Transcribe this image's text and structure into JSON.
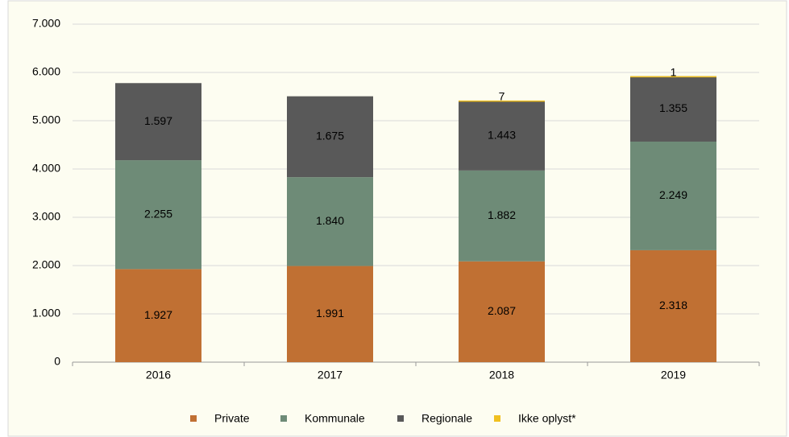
{
  "chart_data": {
    "type": "bar",
    "stacked": true,
    "categories": [
      "2016",
      "2017",
      "2018",
      "2019"
    ],
    "series": [
      {
        "name": "Private",
        "color": "#c07033",
        "values": [
          1927,
          1991,
          2087,
          2318
        ],
        "value_labels": [
          "1.927",
          "1.991",
          "2.087",
          "2.318"
        ]
      },
      {
        "name": "Kommunale",
        "color": "#6e8b77",
        "values": [
          2255,
          1840,
          1882,
          2249
        ],
        "value_labels": [
          "2.255",
          "1.840",
          "1.882",
          "2.249"
        ]
      },
      {
        "name": "Regionale",
        "color": "#595959",
        "values": [
          1597,
          1675,
          1443,
          1355
        ],
        "value_labels": [
          "1.597",
          "1.675",
          "1.443",
          "1.355"
        ]
      },
      {
        "name": "Ikke oplyst*",
        "color": "#f0c020",
        "values": [
          null,
          null,
          7,
          1
        ]
      }
    ],
    "ylim": [
      0,
      7000
    ],
    "yticks": [
      0,
      {
        "value": 1000,
        "label": "1.000"
      },
      {
        "value": 2000,
        "label": "2.000"
      },
      {
        "value": 3000,
        "label": "3.000"
      },
      {
        "value": 4000,
        "label": "4.000"
      },
      {
        "value": 5000,
        "label": "5.000"
      },
      {
        "value": 6000,
        "label": "6.000"
      },
      {
        "value": 7000,
        "label": "7.000"
      }
    ],
    "grid": true,
    "legend": "bottom"
  }
}
